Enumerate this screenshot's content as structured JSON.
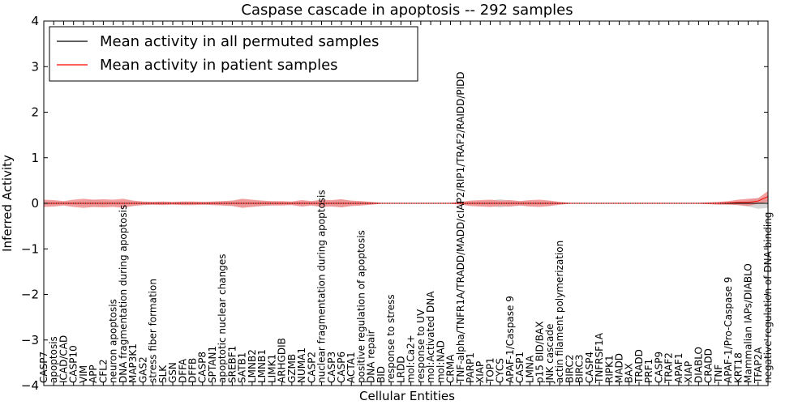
{
  "chart_data": {
    "type": "line",
    "title": "Caspase cascade in apoptosis -- 292 samples",
    "xlabel": "Cellular Entities",
    "ylabel": "Inferred Activity",
    "ylim": [
      -4,
      4
    ],
    "yticks": [
      -4,
      -3,
      -2,
      -1,
      0,
      1,
      2,
      3,
      4
    ],
    "ytick_labels": [
      "−4",
      "−3",
      "−2",
      "−1",
      "0",
      "1",
      "2",
      "3",
      "4"
    ],
    "legend_position": "top-left",
    "categories": [
      "CASP7",
      "apoptosis",
      "ICAD/CAD",
      "CASP10",
      "VIM",
      "APP",
      "CFL2",
      "neuron apoptosis",
      "DNA fragmentation during apoptosis",
      "MAP3K1",
      "GAS2",
      "stress fiber formation",
      "SLK",
      "GSN",
      "DFFA",
      "DFFB",
      "CASP8",
      "SPTAN1",
      "apoptotic nuclear changes",
      "SREBF1",
      "SATB1",
      "LMNB2",
      "LMNB1",
      "LIMK1",
      "ARHGDIB",
      "GZMB",
      "NUMA1",
      "CASP2",
      "nuclear fragmentation during apoptosis",
      "CASP3",
      "CASP6",
      "ACTA1",
      "positive regulation of apoptosis",
      "DNA repair",
      "BID",
      "response to stress",
      "LRDD",
      "mol:Ca2+",
      "response to UV",
      "mol:Activated DNA",
      "mol:NAD",
      "CRMA",
      "TNF-alpha/TNFR1A/TRADD/MADD/cIAP2/RIP1/TRAF2/RAIDD/PIDD",
      "PARP1",
      "XIAP",
      "TOP1",
      "CYCS",
      "APAF-1/Caspase 9",
      "CASP1",
      "LMNA",
      "p15 BID/BAX",
      "JNK cascade",
      "actin filament polymerization",
      "BIRC2",
      "BIRC3",
      "CASP4",
      "TNFRSF1A",
      "RIPK1",
      "MADD",
      "BAX",
      "TRADD",
      "PRF1",
      "CASP9",
      "TRAF2",
      "APAF1",
      "XIAP",
      "DIABLO",
      "CRADD",
      "TNF",
      "APAF-1/Pro-Caspase 9",
      "KRT18",
      "Mammalian IAPs/DIABLO",
      "TFAP2A",
      "negative regulation of DNA binding"
    ],
    "series": [
      {
        "name": "Mean activity in all permuted samples",
        "color": "#000000",
        "values": [
          0.0,
          0.0,
          0.0,
          0.0,
          0.0,
          0.0,
          0.0,
          0.0,
          0.0,
          0.0,
          0.0,
          0.0,
          0.0,
          0.0,
          0.0,
          0.0,
          0.0,
          0.0,
          0.0,
          0.0,
          0.0,
          0.0,
          0.0,
          0.0,
          0.0,
          0.0,
          0.0,
          0.0,
          0.0,
          0.0,
          0.0,
          0.0,
          0.0,
          0.0,
          0.0,
          0.0,
          0.0,
          0.0,
          0.0,
          0.0,
          0.0,
          0.0,
          0.0,
          0.0,
          0.0,
          0.0,
          0.0,
          0.0,
          0.0,
          0.0,
          0.0,
          0.0,
          0.0,
          0.0,
          0.0,
          0.0,
          0.0,
          0.0,
          0.0,
          0.0,
          0.0,
          0.0,
          0.0,
          0.0,
          0.0,
          0.0,
          0.0,
          0.0,
          0.0,
          0.0,
          0.0,
          0.0,
          0.0,
          0.0
        ],
        "band": [
          0.04,
          0.05,
          0.03,
          0.04,
          0.06,
          0.08,
          0.06,
          0.05,
          0.06,
          0.05,
          0.03,
          0.03,
          0.03,
          0.02,
          0.03,
          0.03,
          0.03,
          0.03,
          0.04,
          0.05,
          0.07,
          0.06,
          0.05,
          0.04,
          0.03,
          0.03,
          0.05,
          0.04,
          0.06,
          0.05,
          0.08,
          0.05,
          0.04,
          0.02,
          0.01,
          0.01,
          0.01,
          0.01,
          0.01,
          0.01,
          0.01,
          0.01,
          0.02,
          0.04,
          0.05,
          0.06,
          0.09,
          0.06,
          0.05,
          0.05,
          0.05,
          0.05,
          0.02,
          0.01,
          0.01,
          0.01,
          0.01,
          0.01,
          0.01,
          0.01,
          0.01,
          0.01,
          0.01,
          0.01,
          0.01,
          0.01,
          0.01,
          0.01,
          0.01,
          0.02,
          0.04,
          0.07,
          0.12,
          0.1
        ]
      },
      {
        "name": "Mean activity in patient samples",
        "color": "#ff0000",
        "values": [
          0.0,
          0.0,
          0.0,
          0.0,
          0.0,
          0.0,
          0.0,
          0.0,
          0.0,
          0.0,
          0.0,
          0.0,
          0.0,
          0.0,
          0.0,
          0.0,
          0.0,
          0.0,
          0.0,
          0.0,
          0.0,
          0.0,
          0.0,
          0.0,
          0.0,
          0.0,
          0.0,
          0.0,
          0.0,
          0.0,
          0.0,
          0.0,
          0.0,
          0.0,
          0.0,
          0.0,
          0.0,
          0.0,
          0.0,
          0.0,
          0.0,
          0.0,
          0.0,
          0.0,
          0.0,
          0.0,
          0.0,
          0.0,
          0.0,
          0.0,
          0.0,
          0.0,
          0.0,
          0.0,
          0.0,
          0.0,
          0.0,
          0.0,
          0.0,
          0.0,
          0.0,
          0.0,
          0.0,
          0.0,
          0.0,
          0.0,
          0.0,
          0.0,
          0.0,
          0.01,
          0.02,
          0.02,
          0.05,
          0.15
        ],
        "band": [
          0.08,
          0.07,
          0.05,
          0.08,
          0.1,
          0.08,
          0.09,
          0.08,
          0.1,
          0.06,
          0.04,
          0.03,
          0.04,
          0.03,
          0.04,
          0.04,
          0.03,
          0.04,
          0.05,
          0.06,
          0.1,
          0.08,
          0.06,
          0.05,
          0.05,
          0.04,
          0.07,
          0.05,
          0.08,
          0.07,
          0.09,
          0.06,
          0.05,
          0.03,
          0.01,
          0.01,
          0.01,
          0.01,
          0.01,
          0.01,
          0.01,
          0.01,
          0.03,
          0.06,
          0.07,
          0.08,
          0.06,
          0.07,
          0.05,
          0.07,
          0.08,
          0.06,
          0.03,
          0.01,
          0.01,
          0.01,
          0.01,
          0.01,
          0.01,
          0.01,
          0.01,
          0.01,
          0.01,
          0.01,
          0.01,
          0.01,
          0.01,
          0.02,
          0.03,
          0.04,
          0.06,
          0.08,
          0.06,
          0.12
        ]
      }
    ],
    "band_colors": {
      "permuted": "#c8c8c8",
      "patient": "#f08080"
    }
  }
}
